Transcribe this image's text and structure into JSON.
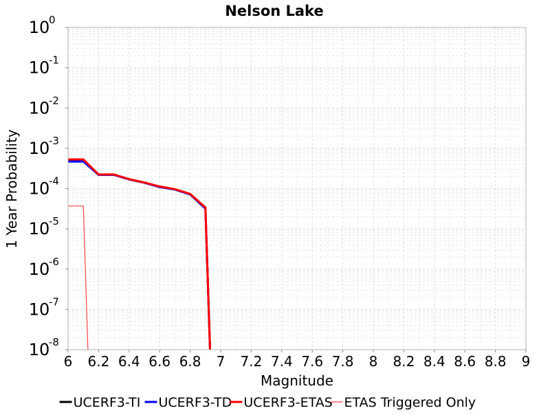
{
  "chart_data": {
    "type": "line",
    "title": "Nelson Lake",
    "xlabel": "Magnitude",
    "ylabel": "1 Year Probability",
    "xlim": [
      6,
      9
    ],
    "ylim": [
      1e-08,
      1
    ],
    "yscale": "log",
    "grid": true,
    "legend_position": "bottom",
    "x_ticks": [
      "6",
      "6.2",
      "6.4",
      "6.6",
      "6.8",
      "7",
      "7.2",
      "7.4",
      "7.6",
      "7.8",
      "8",
      "8.2",
      "8.4",
      "8.6",
      "8.8",
      "9"
    ],
    "y_ticks": [
      {
        "base": "10",
        "exp": "0"
      },
      {
        "base": "10",
        "exp": "-1"
      },
      {
        "base": "10",
        "exp": "-2"
      },
      {
        "base": "10",
        "exp": "-3"
      },
      {
        "base": "10",
        "exp": "-4"
      },
      {
        "base": "10",
        "exp": "-5"
      },
      {
        "base": "10",
        "exp": "-6"
      },
      {
        "base": "10",
        "exp": "-7"
      },
      {
        "base": "10",
        "exp": "-8"
      }
    ],
    "series": [
      {
        "name": "UCERF3-TI",
        "color": "#000000",
        "width": 3,
        "x": [
          6.0,
          6.1,
          6.2,
          6.3,
          6.4,
          6.5,
          6.6,
          6.7,
          6.8,
          6.9,
          6.93
        ],
        "y": [
          0.0005,
          0.0005,
          0.00022,
          0.00022,
          0.00017,
          0.00014,
          0.00011,
          9.5e-05,
          7.2e-05,
          3.2e-05,
          1e-08
        ]
      },
      {
        "name": "UCERF3-TD",
        "color": "#0000ff",
        "width": 3,
        "x": [
          6.0,
          6.1,
          6.2,
          6.3,
          6.4,
          6.5,
          6.6,
          6.7,
          6.8,
          6.9,
          6.93
        ],
        "y": [
          0.00047,
          0.00047,
          0.00022,
          0.00022,
          0.00017,
          0.00014,
          0.00011,
          9.5e-05,
          7.2e-05,
          3.2e-05,
          1e-08
        ]
      },
      {
        "name": "UCERF3-ETAS",
        "color": "#ff0000",
        "width": 3,
        "x": [
          6.0,
          6.1,
          6.2,
          6.3,
          6.4,
          6.5,
          6.6,
          6.7,
          6.8,
          6.9,
          6.93
        ],
        "y": [
          0.00053,
          0.00053,
          0.000225,
          0.000225,
          0.000172,
          0.000142,
          0.000113,
          9.7e-05,
          7.4e-05,
          3.4e-05,
          1e-08
        ]
      },
      {
        "name": "ETAS Triggered Only",
        "color": "#ff4444",
        "width": 1.2,
        "x": [
          6.0,
          6.1,
          6.13
        ],
        "y": [
          3.7e-05,
          3.7e-05,
          1e-08
        ]
      }
    ]
  }
}
